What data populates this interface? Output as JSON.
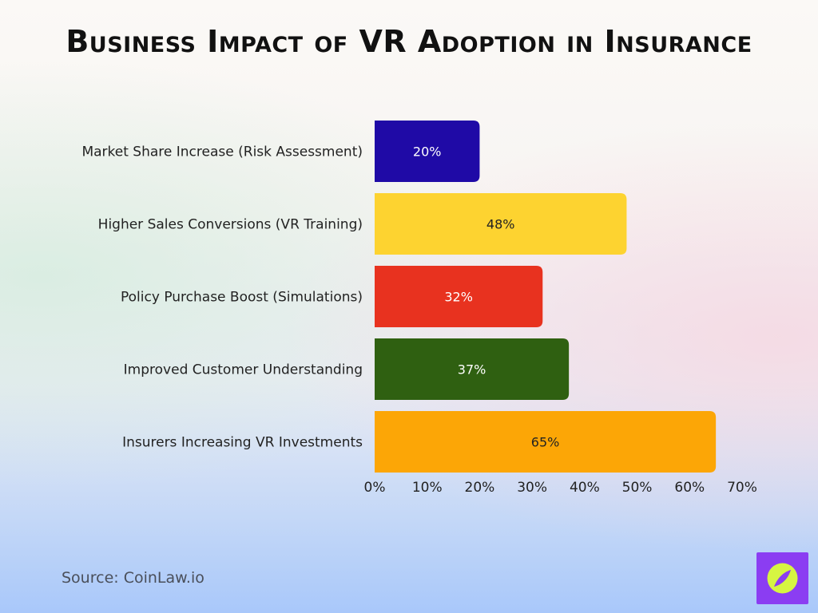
{
  "page": {
    "title": "Business Impact of VR Adoption in Insurance",
    "source": "Source: CoinLaw.io",
    "logo_icon": "compass-icon"
  },
  "chart_data": {
    "type": "bar",
    "orientation": "horizontal",
    "title": "Business Impact of VR Adoption in Insurance",
    "xlabel": "",
    "ylabel": "",
    "categories": [
      "Market Share Increase (Risk Assessment)",
      "Higher Sales Conversions (VR Training)",
      "Policy Purchase Boost (Simulations)",
      "Improved Customer Understanding",
      "Insurers Increasing VR Investments"
    ],
    "values": [
      20,
      48,
      32,
      37,
      65
    ],
    "value_labels": [
      "20%",
      "48%",
      "32%",
      "37%",
      "65%"
    ],
    "colors": [
      "#1f0aa6",
      "#fdd330",
      "#e8321f",
      "#2f6011",
      "#fca606"
    ],
    "label_colors": [
      "#ffffff",
      "#222222",
      "#ffffff",
      "#ffffff",
      "#222222"
    ],
    "xlim": [
      0,
      70
    ],
    "x_ticks": [
      "0%",
      "10%",
      "20%",
      "30%",
      "40%",
      "50%",
      "60%",
      "70%"
    ],
    "grid": false,
    "legend": "none"
  }
}
